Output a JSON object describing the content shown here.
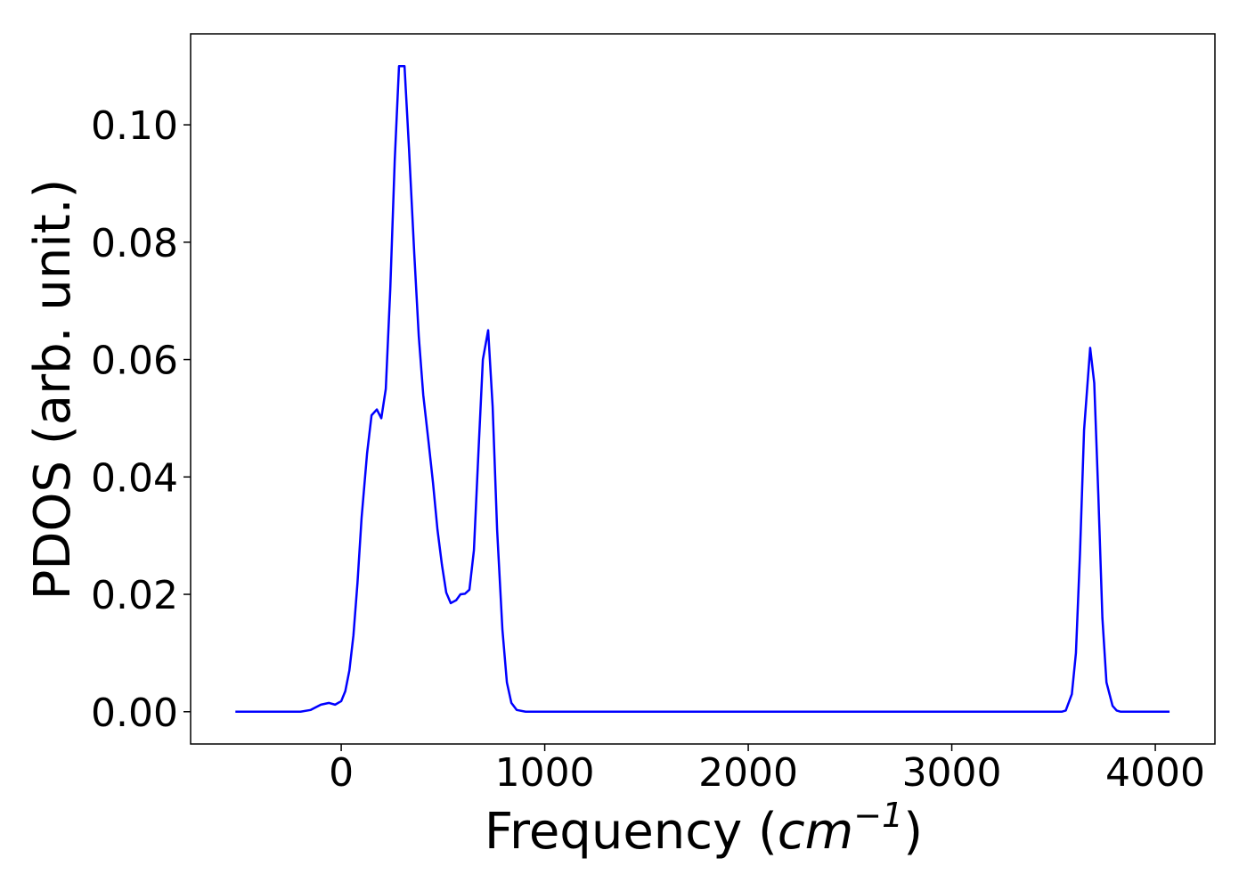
{
  "chart_data": {
    "type": "line",
    "xlabel": [
      "Frequency (",
      "cm",
      "−1",
      ")"
    ],
    "ylabel": "PDOS (arb. unit.)",
    "xlim": [
      -740,
      4293
    ],
    "ylim": [
      -0.0055,
      0.1155
    ],
    "xticks": [
      0,
      1000,
      2000,
      3000,
      4000
    ],
    "yticks": [
      {
        "value": 0,
        "label": "0.00"
      },
      {
        "value": 0.02,
        "label": "0.02"
      },
      {
        "value": 0.04,
        "label": "0.04"
      },
      {
        "value": 0.06,
        "label": "0.06"
      },
      {
        "value": 0.08,
        "label": "0.08"
      },
      {
        "value": 0.1,
        "label": "0.10"
      }
    ],
    "grid": false,
    "series": [
      {
        "color": "#0000ff",
        "x": [
          -520,
          -200,
          -150,
          -100,
          -60,
          -30,
          0,
          20,
          40,
          60,
          80,
          100,
          127,
          149,
          175,
          197,
          219,
          241,
          263,
          284,
          311,
          333,
          359,
          381,
          403,
          429,
          451,
          473,
          495,
          516,
          538,
          565,
          586,
          608,
          630,
          652,
          674,
          696,
          722,
          744,
          766,
          792,
          814,
          836,
          862,
          906,
          3540,
          3560,
          3590,
          3610,
          3630,
          3650,
          3680,
          3700,
          3720,
          3740,
          3760,
          3790,
          3810,
          3830,
          4070
        ],
        "values": [
          0,
          0,
          0.0003,
          0.0012,
          0.0015,
          0.0012,
          0.0018,
          0.0035,
          0.007,
          0.013,
          0.022,
          0.033,
          0.044,
          0.0505,
          0.0515,
          0.05,
          0.055,
          0.072,
          0.094,
          0.11,
          0.11,
          0.096,
          0.078,
          0.064,
          0.054,
          0.046,
          0.039,
          0.031,
          0.025,
          0.0203,
          0.0185,
          0.019,
          0.02,
          0.0201,
          0.0208,
          0.0275,
          0.044,
          0.06,
          0.065,
          0.052,
          0.031,
          0.014,
          0.005,
          0.0015,
          0.0003,
          0,
          0,
          0.0002,
          0.003,
          0.01,
          0.027,
          0.048,
          0.062,
          0.056,
          0.037,
          0.016,
          0.005,
          0.001,
          0.0002,
          0,
          0
        ]
      }
    ]
  }
}
